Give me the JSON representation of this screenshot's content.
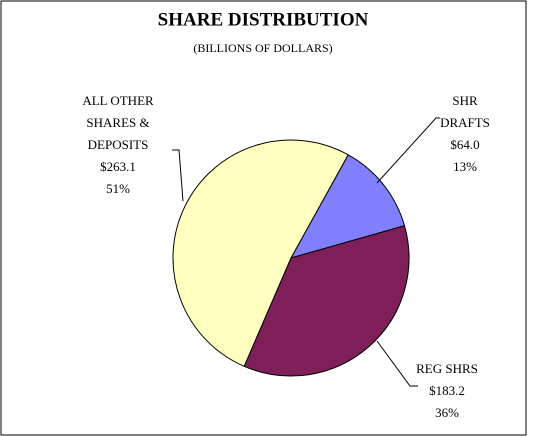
{
  "chart_data": {
    "type": "pie",
    "title": "SHARE DISTRIBUTION",
    "subtitle": "(BILLIONS OF DOLLARS)",
    "categories": [
      "SHR DRAFTS",
      "REG SHRS",
      "ALL OTHER SHARES & DEPOSITS"
    ],
    "values": [
      64.0,
      183.2,
      263.1
    ],
    "value_labels": [
      "$64.0",
      "$183.2",
      "$263.1"
    ],
    "percents": [
      13,
      36,
      51
    ],
    "percent_labels": [
      "13%",
      "36%",
      "51%"
    ],
    "colors": [
      "#8080ff",
      "#7f1f5a",
      "#ffffc0"
    ]
  }
}
